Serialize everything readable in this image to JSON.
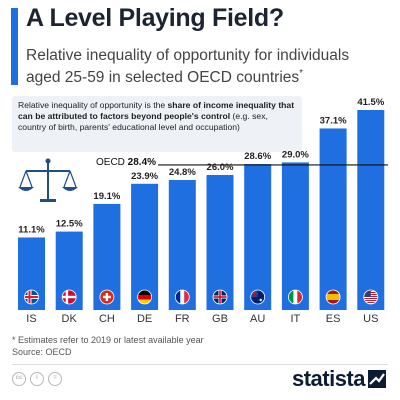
{
  "header": {
    "title": "A Level Playing Field?",
    "subtitle": "Relative inequality of opportunity for individuals aged 25-59 in selected OECD countries",
    "subtitle_mark": "*"
  },
  "note": {
    "text_plain_1": "Relative inequality of opportunity is the ",
    "text_bold": "share of income inequality that can be attributed to factors beyond people's control",
    "text_plain_2": " (e.g. sex, country of birth, parents' educational level and occupation)"
  },
  "footer": {
    "footnote": "* Estimates refer to 2019 or latest available year",
    "source": "Source: OECD",
    "brand": "statista",
    "license_icons": [
      "cc-icon",
      "person-icon",
      "equals-icon"
    ]
  },
  "colors": {
    "bar": "#1f6fe0",
    "accent": "#1f6fe0",
    "reference_line": "#111111",
    "flag_strip": "#1f6fe0"
  },
  "chart_data": {
    "type": "bar",
    "title": "A Level Playing Field?",
    "categories": [
      "IS",
      "DK",
      "CH",
      "DE",
      "FR",
      "GB",
      "AU",
      "IT",
      "ES",
      "US"
    ],
    "values": [
      11.1,
      12.5,
      19.1,
      23.9,
      24.8,
      26.0,
      28.6,
      29.0,
      37.1,
      41.5
    ],
    "value_labels": [
      "11.1%",
      "12.5%",
      "19.1%",
      "23.9%",
      "24.8%",
      "26.0%",
      "28.6%",
      "29.0%",
      "37.1%",
      "41.5%"
    ],
    "flags": [
      "iceland-flag-icon",
      "denmark-flag-icon",
      "switzerland-flag-icon",
      "germany-flag-icon",
      "france-flag-icon",
      "uk-flag-icon",
      "australia-flag-icon",
      "italy-flag-icon",
      "spain-flag-icon",
      "usa-flag-icon"
    ],
    "reference": {
      "label": "OECD",
      "value": 28.4,
      "value_label": "28.4%"
    },
    "ylim": [
      0,
      41.5
    ],
    "xlabel": "",
    "ylabel": "",
    "grid": false,
    "legend": "none"
  }
}
